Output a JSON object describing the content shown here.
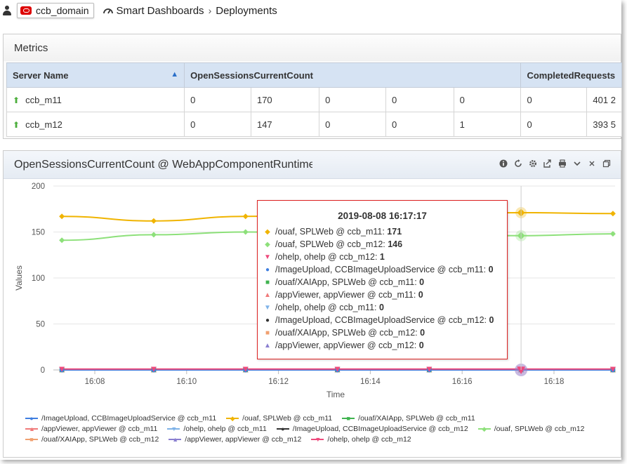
{
  "topbar": {
    "domain": "ccb_domain",
    "breadcrumb": [
      "Smart Dashboards",
      "Deployments"
    ]
  },
  "metrics": {
    "title": "Metrics",
    "columns": [
      "Server Name",
      "OpenSessionsCurrentCount",
      "CompletedRequests"
    ],
    "rows": [
      {
        "server": "ccb_m11",
        "values": [
          "0",
          "170",
          "0",
          "0",
          "0",
          "0",
          "401 2"
        ]
      },
      {
        "server": "ccb_m12",
        "values": [
          "0",
          "147",
          "0",
          "0",
          "1",
          "0",
          "393 5"
        ]
      }
    ]
  },
  "chart_panel": {
    "title": "OpenSessionsCurrentCount @ WebAppComponentRuntimeMBean",
    "toolbar_icons": [
      "info-icon",
      "refresh-icon",
      "gear-icon",
      "export-icon",
      "print-icon",
      "chevron-down-icon",
      "close-icon",
      "restore-icon"
    ]
  },
  "chart_data": {
    "type": "line",
    "xlabel": "Time",
    "ylabel": "Values",
    "ylim": [
      0,
      200
    ],
    "yticks": [
      "0",
      "50",
      "100",
      "150",
      "200"
    ],
    "xticks": [
      "16:08",
      "16:10",
      "16:12",
      "16:14",
      "16:16",
      "16:18"
    ],
    "x": [
      "16:07:17",
      "16:09:17",
      "16:11:17",
      "16:13:17",
      "16:15:17",
      "16:17:17",
      "16:19:17"
    ],
    "series": [
      {
        "name": "/ouaf, SPLWeb @ ccb_m11",
        "color": "#f0b400",
        "marker": "diamond",
        "values": [
          167,
          162,
          167,
          169,
          170,
          171,
          170
        ]
      },
      {
        "name": "/ouaf, SPLWeb @ ccb_m12",
        "color": "#8de07a",
        "marker": "diamond",
        "values": [
          141,
          147,
          150,
          149,
          147,
          146,
          148
        ]
      },
      {
        "name": "/ohelp, ohelp @ ccb_m12",
        "color": "#ee4a7c",
        "marker": "triangle-down",
        "values": [
          1,
          1,
          1,
          1,
          1,
          1,
          1
        ]
      },
      {
        "name": "/ImageUpload, CCBImageUploadService @ ccb_m11",
        "color": "#3f7fe0",
        "marker": "circle",
        "values": [
          0,
          0,
          0,
          0,
          0,
          0,
          0
        ]
      },
      {
        "name": "/ouaf/XAIApp, SPLWeb @ ccb_m11",
        "color": "#3fb34f",
        "marker": "square",
        "values": [
          0,
          0,
          0,
          0,
          0,
          0,
          0
        ]
      },
      {
        "name": "/appViewer, appViewer @ ccb_m11",
        "color": "#f07a7a",
        "marker": "triangle",
        "values": [
          0,
          0,
          0,
          0,
          0,
          0,
          0
        ]
      },
      {
        "name": "/ohelp, ohelp @ ccb_m11",
        "color": "#7fb3e8",
        "marker": "triangle-down",
        "values": [
          0,
          0,
          0,
          0,
          0,
          0,
          0
        ]
      },
      {
        "name": "/ImageUpload, CCBImageUploadService @ ccb_m12",
        "color": "#333333",
        "marker": "circle",
        "values": [
          0,
          0,
          0,
          0,
          0,
          0,
          0
        ]
      },
      {
        "name": "/ouaf/XAIApp, SPLWeb @ ccb_m12",
        "color": "#f0a070",
        "marker": "square",
        "values": [
          0,
          0,
          0,
          0,
          0,
          0,
          0
        ]
      },
      {
        "name": "/appViewer, appViewer @ ccb_m12",
        "color": "#8a7fd0",
        "marker": "triangle",
        "values": [
          0,
          0,
          0,
          0,
          0,
          0,
          0
        ]
      }
    ],
    "tooltip": {
      "title": "2019-08-08 16:17:17",
      "rows": [
        {
          "label": "/ouaf, SPLWeb @ ccb_m11: ",
          "value": "171",
          "marker": "◆",
          "color": "#f0b400"
        },
        {
          "label": "/ouaf, SPLWeb @ ccb_m12: ",
          "value": "146",
          "marker": "◆",
          "color": "#8de07a"
        },
        {
          "label": "/ohelp, ohelp @ ccb_m12: ",
          "value": "1",
          "marker": "▼",
          "color": "#ee4a7c"
        },
        {
          "label": "/ImageUpload, CCBImageUploadService @ ccb_m11: ",
          "value": "0",
          "marker": "●",
          "color": "#3f7fe0"
        },
        {
          "label": "/ouaf/XAIApp, SPLWeb @ ccb_m11: ",
          "value": "0",
          "marker": "■",
          "color": "#3fb34f"
        },
        {
          "label": "/appViewer, appViewer @ ccb_m11: ",
          "value": "0",
          "marker": "▲",
          "color": "#f07a7a"
        },
        {
          "label": "/ohelp, ohelp @ ccb_m11: ",
          "value": "0",
          "marker": "▼",
          "color": "#7fb3e8"
        },
        {
          "label": "/ImageUpload, CCBImageUploadService @ ccb_m12: ",
          "value": "0",
          "marker": "●",
          "color": "#333333"
        },
        {
          "label": "/ouaf/XAIApp, SPLWeb @ ccb_m12: ",
          "value": "0",
          "marker": "■",
          "color": "#f0a070"
        },
        {
          "label": "/appViewer, appViewer @ ccb_m12: ",
          "value": "0",
          "marker": "▲",
          "color": "#8a7fd0"
        }
      ]
    },
    "legend": [
      [
        {
          "label": "/ImageUpload, CCBImageUploadService @ ccb_m11",
          "color": "#3f7fe0",
          "marker": "●"
        },
        {
          "label": "/ouaf, SPLWeb @ ccb_m11",
          "color": "#f0b400",
          "marker": "◆"
        },
        {
          "label": "/ouaf/XAIApp, SPLWeb @ ccb_m11",
          "color": "#3fb34f",
          "marker": "■"
        }
      ],
      [
        {
          "label": "/appViewer, appViewer @ ccb_m11",
          "color": "#f07a7a",
          "marker": "▲"
        },
        {
          "label": "/ohelp, ohelp @ ccb_m11",
          "color": "#7fb3e8",
          "marker": "▼"
        },
        {
          "label": "/ImageUpload, CCBImageUploadService @ ccb_m12",
          "color": "#333333",
          "marker": "●"
        },
        {
          "label": "/ouaf, SPLWeb @ ccb_m12",
          "color": "#8de07a",
          "marker": "◆"
        }
      ],
      [
        {
          "label": "/ouaf/XAIApp, SPLWeb @ ccb_m12",
          "color": "#f0a070",
          "marker": "■"
        },
        {
          "label": "/appViewer, appViewer @ ccb_m12",
          "color": "#8a7fd0",
          "marker": "▲"
        },
        {
          "label": "/ohelp, ohelp @ ccb_m12",
          "color": "#ee4a7c",
          "marker": "▼"
        }
      ]
    ]
  }
}
